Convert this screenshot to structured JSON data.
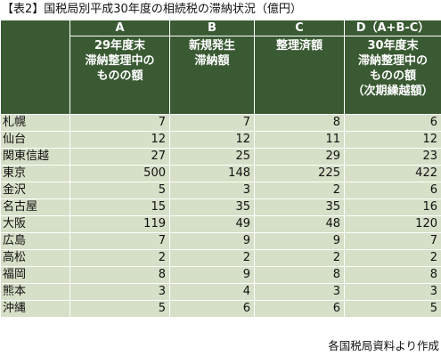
{
  "title": "【表2】国税局別平成30年度の相続税の滞納状況（億円）",
  "headers": [
    {
      "letter": "A",
      "desc": [
        "29年度末",
        "滞納整理中の",
        "ものの額"
      ]
    },
    {
      "letter": "B",
      "desc": [
        "新規発生",
        "滞納額"
      ]
    },
    {
      "letter": "C",
      "desc": [
        "整理済額"
      ]
    },
    {
      "letter": "D（A+B-C）",
      "desc": [
        "30年度末",
        "滞納整理中の",
        "ものの額",
        "（次期繰越額）"
      ]
    }
  ],
  "rows": [
    {
      "name": "札幌",
      "values": [
        "7",
        "7",
        "8",
        "6"
      ]
    },
    {
      "name": "仙台",
      "values": [
        "12",
        "12",
        "11",
        "12"
      ]
    },
    {
      "name": "関東信越",
      "values": [
        "27",
        "25",
        "29",
        "23"
      ]
    },
    {
      "name": "東京",
      "values": [
        "500",
        "148",
        "225",
        "422"
      ]
    },
    {
      "name": "金沢",
      "values": [
        "5",
        "3",
        "2",
        "6"
      ]
    },
    {
      "name": "名古屋",
      "values": [
        "15",
        "35",
        "35",
        "16"
      ]
    },
    {
      "name": "大阪",
      "values": [
        "119",
        "49",
        "48",
        "120"
      ]
    },
    {
      "name": "広島",
      "values": [
        "7",
        "9",
        "9",
        "7"
      ]
    },
    {
      "name": "高松",
      "values": [
        "2",
        "2",
        "2",
        "2"
      ]
    },
    {
      "name": "福岡",
      "values": [
        "8",
        "9",
        "8",
        "8"
      ]
    },
    {
      "name": "熊本",
      "values": [
        "3",
        "4",
        "3",
        "3"
      ]
    },
    {
      "name": "沖縄",
      "values": [
        "5",
        "6",
        "6",
        "5"
      ]
    }
  ],
  "source": "各国税局資料より作成",
  "colors": {
    "header_bg": "#3a5a33",
    "header_text": "#ffffff",
    "row_bg": "#d6dfc7"
  }
}
